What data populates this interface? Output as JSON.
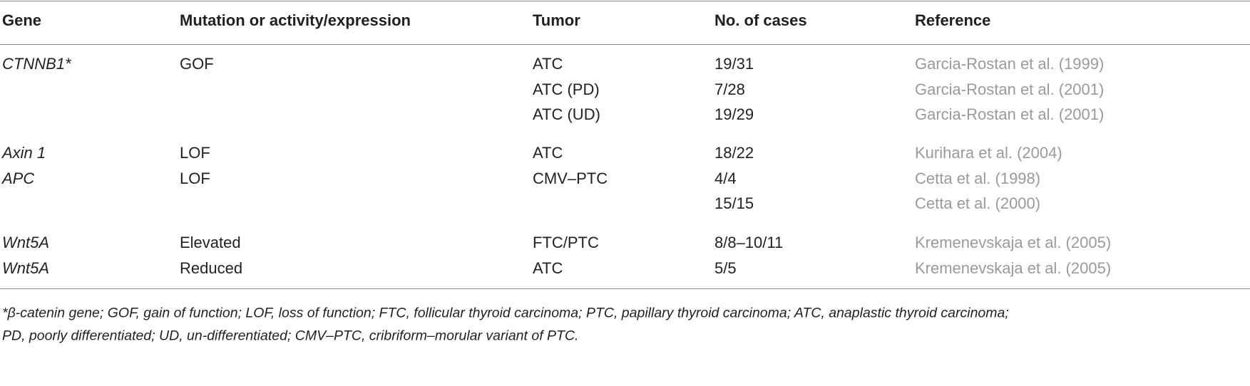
{
  "table": {
    "header": [
      "Gene",
      "Mutation or activity/expression",
      "Tumor",
      "No. of cases",
      "Reference"
    ],
    "groups": [
      [
        [
          "CTNNB1*",
          "GOF",
          "ATC",
          "19/31",
          "Garcia-Rostan et al. (1999)"
        ],
        [
          null,
          null,
          "ATC (PD)",
          "7/28",
          "Garcia-Rostan et al. (2001)"
        ],
        [
          null,
          null,
          "ATC (UD)",
          "19/29",
          "Garcia-Rostan et al. (2001)"
        ]
      ],
      [
        [
          "Axin 1",
          "LOF",
          "ATC",
          "18/22",
          "Kurihara et al. (2004)"
        ],
        [
          "APC",
          "LOF",
          "CMV–PTC",
          "4/4",
          "Cetta et al. (1998)"
        ],
        [
          null,
          null,
          null,
          "15/15",
          "Cetta et al. (2000)"
        ]
      ],
      [
        [
          "Wnt5A",
          "Elevated",
          "FTC/PTC",
          "8/8–10/11",
          "Kremenevskaja et al. (2005)"
        ],
        [
          "Wnt5A",
          "Reduced",
          "ATC",
          "5/5",
          "Kremenevskaja et al. (2005)"
        ]
      ]
    ],
    "footnote": [
      "*β-catenin gene; GOF, gain of function; LOF, loss of function; FTC, follicular thyroid carcinoma; PTC, papillary thyroid carcinoma; ATC, anaplastic thyroid carcinoma;",
      "PD, poorly differentiated; UD, un-differentiated; CMV–PTC, cribriform–morular variant of PTC."
    ]
  }
}
